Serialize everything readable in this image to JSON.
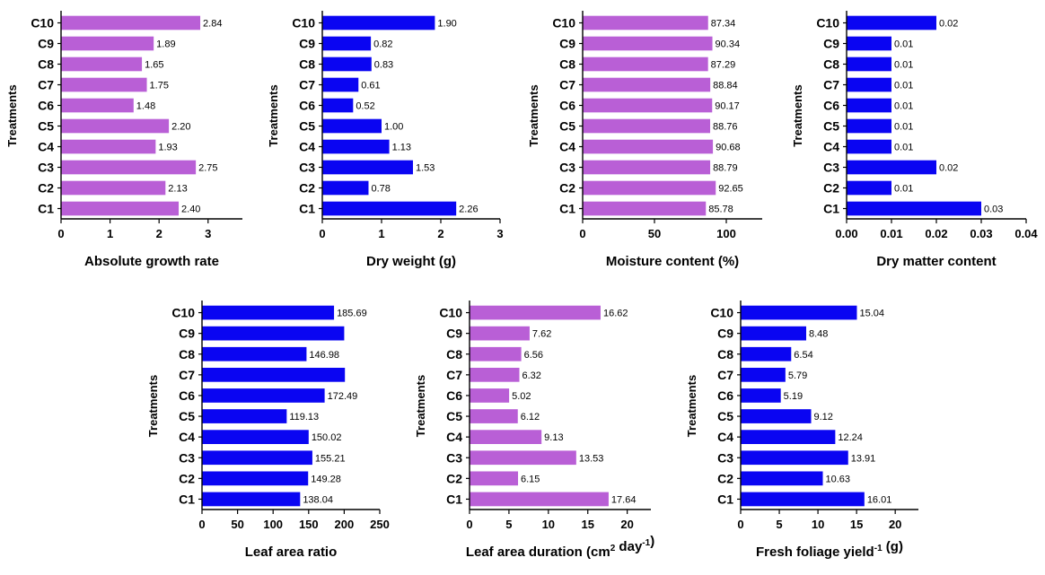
{
  "colors": {
    "violet": "#b95fd6",
    "blue": "#0a05f2",
    "axis": "#000000"
  },
  "chart_data": [
    {
      "type": "bar",
      "orientation": "horizontal",
      "color": "#b95fd6",
      "categories": [
        "C1",
        "C2",
        "C3",
        "C4",
        "C5",
        "C6",
        "C7",
        "C8",
        "C9",
        "C10"
      ],
      "values": [
        2.4,
        2.13,
        2.75,
        1.93,
        2.2,
        1.48,
        1.75,
        1.65,
        1.89,
        2.84
      ],
      "value_labels": [
        "2.40",
        "2.13",
        "2.75",
        "1.93",
        "2.20",
        "1.48",
        "1.75",
        "1.65",
        "1.89",
        "2.84"
      ],
      "xlabel": "Absolute growth rate",
      "xlabel_sup": "",
      "xlabel_tail": "",
      "ylabel": "Treatments",
      "xlim": [
        0,
        3.7
      ],
      "xticks": [
        0,
        1,
        2,
        3
      ],
      "xtick_labels": [
        "0",
        "1",
        "2",
        "3"
      ]
    },
    {
      "type": "bar",
      "orientation": "horizontal",
      "color": "#0a05f2",
      "categories": [
        "C1",
        "C2",
        "C3",
        "C4",
        "C5",
        "C6",
        "C7",
        "C8",
        "C9",
        "C10"
      ],
      "values": [
        2.26,
        0.78,
        1.53,
        1.13,
        1.0,
        0.52,
        0.61,
        0.83,
        0.82,
        1.9
      ],
      "value_labels": [
        "2.26",
        "0.78",
        "1.53",
        "1.13",
        "1.00",
        "0.52",
        "0.61",
        "0.83",
        "0.82",
        "1.90"
      ],
      "xlabel": "Dry weight (g)",
      "xlabel_sup": "",
      "xlabel_tail": "",
      "ylabel": "Treatments",
      "xlim": [
        0,
        3
      ],
      "xticks": [
        0,
        1,
        2,
        3
      ],
      "xtick_labels": [
        "0",
        "1",
        "2",
        "3"
      ]
    },
    {
      "type": "bar",
      "orientation": "horizontal",
      "color": "#b95fd6",
      "categories": [
        "C1",
        "C2",
        "C3",
        "C4",
        "C5",
        "C6",
        "C7",
        "C8",
        "C9",
        "C10"
      ],
      "values": [
        85.78,
        92.65,
        88.79,
        90.68,
        88.76,
        90.17,
        88.84,
        87.29,
        90.34,
        87.34
      ],
      "value_labels": [
        "85.78",
        "92.65",
        "88.79",
        "90.68",
        "88.76",
        "90.17",
        "88.84",
        "87.29",
        "90.34",
        "87.34"
      ],
      "xlabel": "Moisture content (%)",
      "xlabel_sup": "",
      "xlabel_tail": "",
      "ylabel": "Treatments",
      "xlim": [
        0,
        125
      ],
      "xticks": [
        0,
        50,
        100
      ],
      "xtick_labels": [
        "0",
        "50",
        "100"
      ]
    },
    {
      "type": "bar",
      "orientation": "horizontal",
      "color": "#0a05f2",
      "categories": [
        "C1",
        "C2",
        "C3",
        "C4",
        "C5",
        "C6",
        "C7",
        "C8",
        "C9",
        "C10"
      ],
      "values": [
        0.03,
        0.01,
        0.02,
        0.01,
        0.01,
        0.01,
        0.01,
        0.01,
        0.01,
        0.02
      ],
      "value_labels": [
        "0.03",
        "0.01",
        "0.02",
        "0.01",
        "0.01",
        "0.01",
        "0.01",
        "0.01",
        "0.01",
        "0.02"
      ],
      "xlabel": "Dry matter content",
      "xlabel_sup": "",
      "xlabel_tail": "",
      "ylabel": "Treatments",
      "xlim": [
        0,
        0.04
      ],
      "xticks": [
        0,
        0.01,
        0.02,
        0.03,
        0.04
      ],
      "xtick_labels": [
        "0.00",
        "0.01",
        "0.02",
        "0.03",
        "0.04"
      ]
    },
    {
      "type": "bar",
      "orientation": "horizontal",
      "color": "#0a05f2",
      "categories": [
        "C1",
        "C2",
        "C3",
        "C4",
        "C5",
        "C6",
        "C7",
        "C8",
        "C9",
        "C10"
      ],
      "values": [
        138.04,
        149.28,
        155.21,
        150.02,
        119.13,
        172.49,
        201,
        146.98,
        200,
        185.69
      ],
      "value_labels": [
        "138.04",
        "149.28",
        "155.21",
        "150.02",
        "119.13",
        "172.49",
        "",
        "146.98",
        "",
        "185.69"
      ],
      "xlabel": "Leaf area ratio",
      "xlabel_sup": "",
      "xlabel_tail": "",
      "ylabel": "Treatments",
      "xlim": [
        0,
        250
      ],
      "xticks": [
        0,
        50,
        100,
        150,
        200,
        250
      ],
      "xtick_labels": [
        "0",
        "50",
        "100",
        "150",
        "200",
        "250"
      ]
    },
    {
      "type": "bar",
      "orientation": "horizontal",
      "color": "#b95fd6",
      "categories": [
        "C1",
        "C2",
        "C3",
        "C4",
        "C5",
        "C6",
        "C7",
        "C8",
        "C9",
        "C10"
      ],
      "values": [
        17.64,
        6.15,
        13.53,
        9.13,
        6.12,
        5.02,
        6.32,
        6.56,
        7.62,
        16.62
      ],
      "value_labels": [
        "17.64",
        "6.15",
        "13.53",
        "9.13",
        "6.12",
        "5.02",
        "6.32",
        "6.56",
        "7.62",
        "16.62"
      ],
      "xlabel": "Leaf area duration (cm",
      "xlabel_sup": "2",
      "xlabel_tail": " day",
      "xlabel_sup2": "-1",
      "xlabel_end": ")",
      "ylabel": "Treatments",
      "xlim": [
        0,
        23
      ],
      "xticks": [
        0,
        5,
        10,
        15,
        20
      ],
      "xtick_labels": [
        "0",
        "5",
        "10",
        "15",
        "20"
      ]
    },
    {
      "type": "bar",
      "orientation": "horizontal",
      "color": "#0a05f2",
      "categories": [
        "C1",
        "C2",
        "C3",
        "C4",
        "C5",
        "C6",
        "C7",
        "C8",
        "C9",
        "C10"
      ],
      "values": [
        16.01,
        10.63,
        13.91,
        12.24,
        9.12,
        5.19,
        5.79,
        6.54,
        8.48,
        15.04
      ],
      "value_labels": [
        "16.01",
        "10.63",
        "13.91",
        "12.24",
        "9.12",
        "5.19",
        "5.79",
        "6.54",
        "8.48",
        "15.04"
      ],
      "xlabel": "Fresh foliage yield",
      "xlabel_sup": "-1",
      "xlabel_tail": " (g)",
      "ylabel": "Treatments",
      "xlim": [
        0,
        23
      ],
      "xticks": [
        0,
        5,
        10,
        15,
        20
      ],
      "xtick_labels": [
        "0",
        "5",
        "10",
        "15",
        "20"
      ]
    }
  ]
}
